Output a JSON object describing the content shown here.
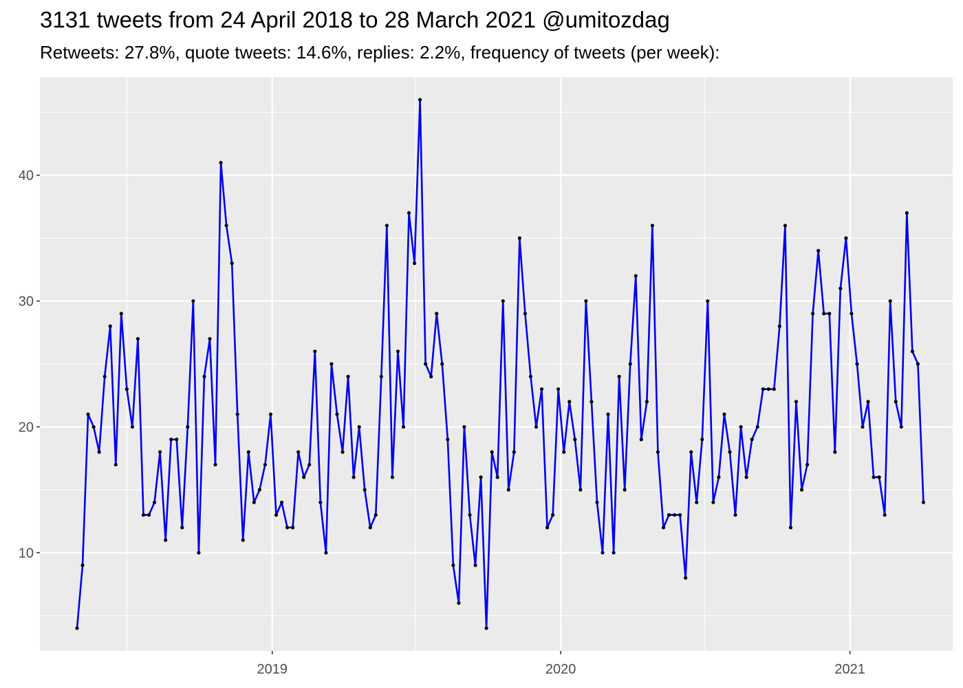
{
  "chart_data": {
    "type": "line",
    "title": "3131 tweets from 24 April 2018 to 28 March 2021 @umitozdag",
    "subtitle": "Retweets: 27.8%, quote tweets: 14.6%, replies: 2.2%, frequency of tweets (per week):",
    "xlabel": "",
    "ylabel": "",
    "x_start": "2018-04-29",
    "x_interval_days": 7,
    "xlim": [
      "2018-03-13",
      "2021-05-11"
    ],
    "ylim": [
      2.2,
      47.8
    ],
    "x_ticks": [
      "2019",
      "2020",
      "2021"
    ],
    "y_ticks": [
      10,
      20,
      30,
      40
    ],
    "grid": true,
    "colors": {
      "line": "#0000ee",
      "point": "#000000",
      "panel": "#ebebeb",
      "grid": "#ffffff"
    },
    "series": [
      {
        "values": [
          4,
          9,
          21,
          20,
          18,
          24,
          28,
          17,
          29,
          23,
          20,
          27,
          13,
          13,
          14,
          18,
          11,
          19,
          19,
          12,
          20,
          30,
          10,
          24,
          27,
          17,
          41,
          36,
          33,
          21,
          11,
          18,
          14,
          15,
          17,
          21,
          13,
          14,
          12,
          12,
          18,
          16,
          17,
          26,
          14,
          10,
          25,
          21,
          18,
          24,
          16,
          20,
          15,
          12,
          13,
          24,
          36,
          16,
          26,
          20,
          37,
          33,
          46,
          25,
          24,
          29,
          25,
          19,
          9,
          6,
          20,
          13,
          9,
          16,
          4,
          18,
          16,
          30,
          15,
          18,
          35,
          29,
          24,
          20,
          23,
          12,
          13,
          23,
          18,
          22,
          19,
          15,
          30,
          22,
          14,
          10,
          21,
          10,
          24,
          15,
          25,
          32,
          19,
          22,
          36,
          18,
          12,
          13,
          13,
          13,
          8,
          18,
          14,
          19,
          30,
          14,
          16,
          21,
          18,
          13,
          20,
          16,
          19,
          20,
          23,
          23,
          23,
          28,
          36,
          12,
          22,
          15,
          17,
          29,
          34,
          29,
          29,
          18,
          31,
          35,
          29,
          25,
          20,
          22,
          16,
          16,
          13,
          30,
          22,
          20,
          37,
          26,
          25,
          14
        ]
      }
    ]
  }
}
